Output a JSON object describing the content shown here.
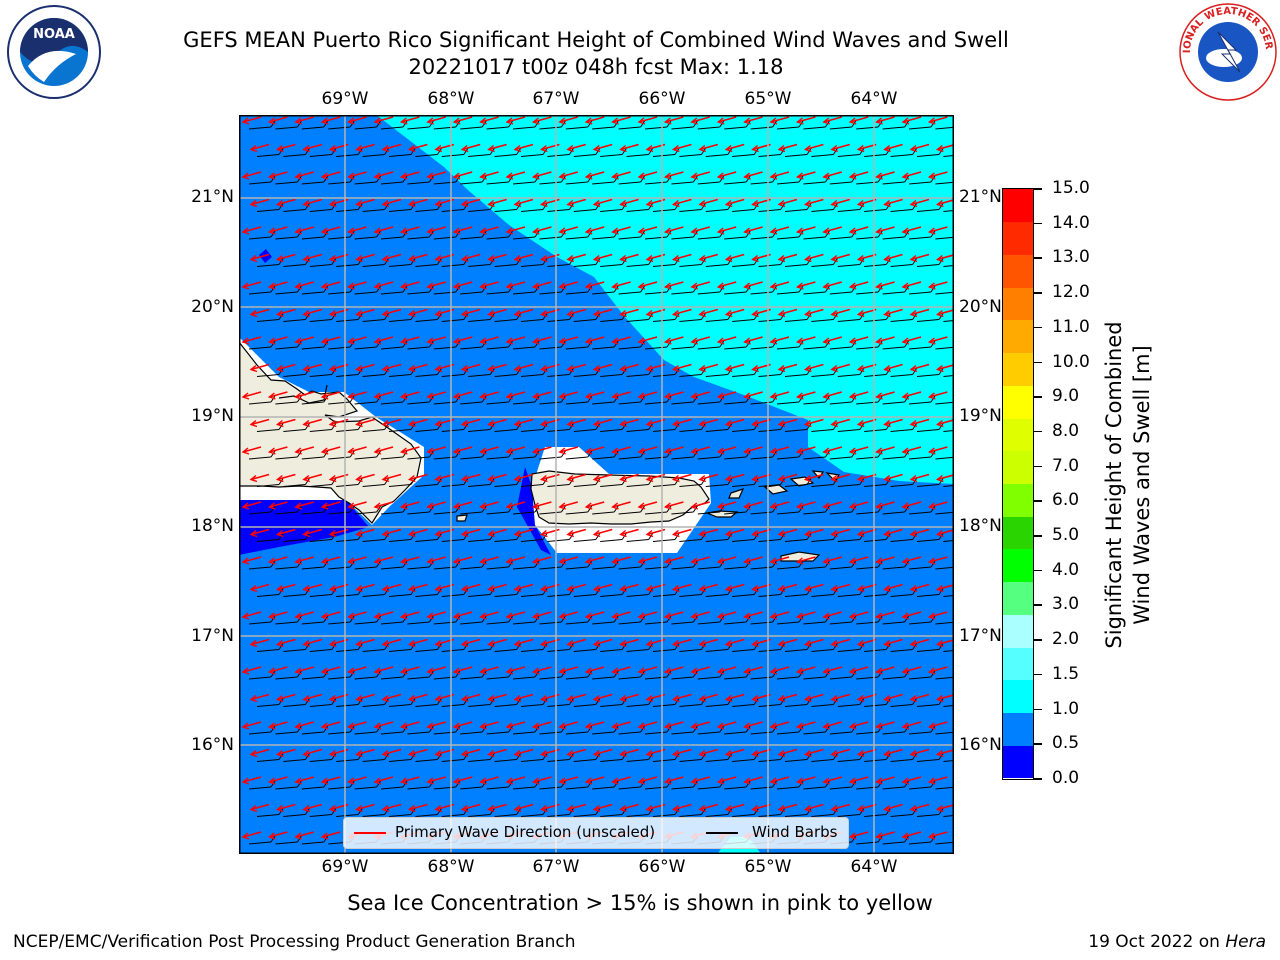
{
  "title": {
    "line1": "GEFS MEAN Puerto Rico Significant Height of Combined Wind Waves and Swell",
    "line2": "20221017 t00z 048h fcst   Max: 1.18"
  },
  "logos": {
    "left": "NOAA",
    "right": "NATIONAL WEATHER SERVICE"
  },
  "map": {
    "lon_ticks": [
      "69°W",
      "68°W",
      "67°W",
      "66°W",
      "65°W",
      "64°W"
    ],
    "lat_ticks": [
      "21°N",
      "20°N",
      "19°N",
      "18°N",
      "17°N",
      "16°N"
    ],
    "colors": {
      "sea_lt05": "#0000ff",
      "sea_05_10": "#0080ff",
      "sea_10_15": "#00ffff",
      "land": "#efedde",
      "wave_arrow": "#ff0000",
      "wind_barb": "#000000",
      "grid": "#b4b4b4"
    }
  },
  "colorbar": {
    "title_line1": "Significant Height of Combined",
    "title_line2": "Wind Waves and Swell [m]",
    "levels": [
      "0.0",
      "0.5",
      "1.0",
      "1.5",
      "2.0",
      "3.0",
      "4.0",
      "5.0",
      "6.0",
      "7.0",
      "8.0",
      "9.0",
      "10.0",
      "11.0",
      "12.0",
      "13.0",
      "14.0",
      "15.0"
    ],
    "colors": [
      "#0000ff",
      "#0080ff",
      "#00ffff",
      "#55ffff",
      "#aaffff",
      "#55ff80",
      "#00ff00",
      "#2ad400",
      "#80ff00",
      "#ccff00",
      "#dfff00",
      "#ffff00",
      "#ffcc00",
      "#ffaa00",
      "#ff8000",
      "#ff5500",
      "#ff2a00",
      "#ff0000"
    ]
  },
  "legend": {
    "wave": "Primary Wave Direction (unscaled)",
    "wind": "Wind Barbs"
  },
  "footer": {
    "note": "Sea Ice Concentration > 15% is shown in pink to yellow",
    "branch": "NCEP/EMC/Verification Post Processing Product Generation Branch",
    "date": "19 Oct 2022 on",
    "machine": "Hera"
  }
}
